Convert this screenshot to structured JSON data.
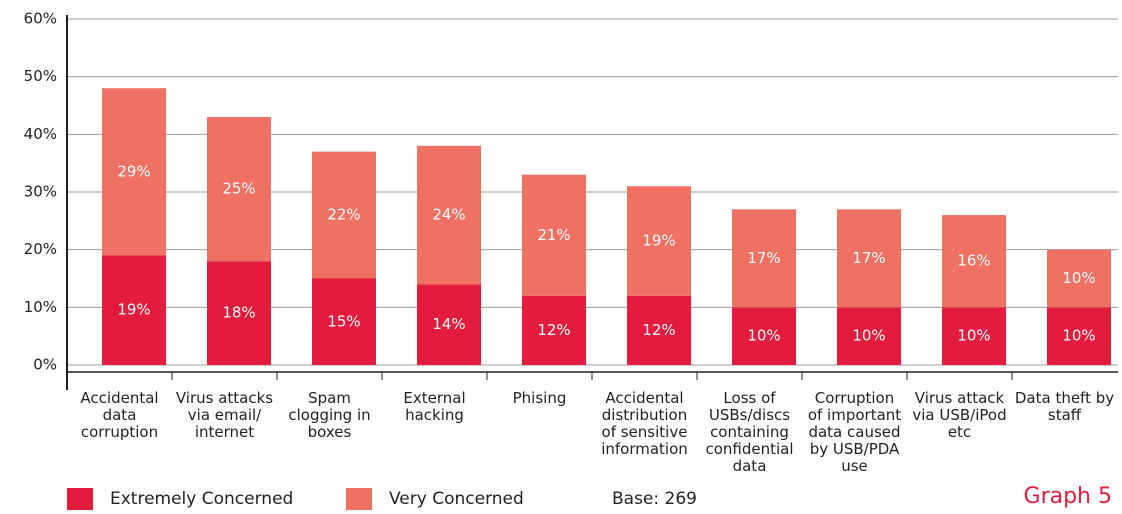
{
  "chart_data": {
    "type": "stacked_bar",
    "categories": [
      "Accidental\ndata\ncorruption",
      "Virus attacks\nvia email/\ninternet",
      "Spam\nclogging in\nboxes",
      "External\nhacking",
      "Phising",
      "Accidental\ndistribution\nof sensitive\ninformation",
      "Loss of\nUSBs/discs\ncontaining\nconfidential\ndata",
      "Corruption\nof important\ndata caused\nby USB/PDA\nuse",
      "Virus attack\nvia USB/iPod\netc",
      "Data theft by\nstaff"
    ],
    "series": [
      {
        "name": "Extremely Concerned",
        "color": "#e31b3c",
        "values": [
          19,
          18,
          15,
          14,
          12,
          12,
          10,
          10,
          10,
          10
        ]
      },
      {
        "name": "Very Concerned",
        "color": "#ee7164",
        "values": [
          29,
          25,
          22,
          24,
          21,
          19,
          17,
          17,
          16,
          10
        ]
      }
    ],
    "ylim": [
      0,
      60
    ],
    "yticks": [
      {
        "value": 0,
        "label": "0%"
      },
      {
        "value": 10,
        "label": "10%"
      },
      {
        "value": 20,
        "label": "20%"
      },
      {
        "value": 30,
        "label": "30%"
      },
      {
        "value": 40,
        "label": "40%"
      },
      {
        "value": 50,
        "label": "50%"
      },
      {
        "value": 60,
        "label": "60%"
      }
    ],
    "grid": true,
    "legend": "bottom",
    "note": "Base: 269",
    "caption": "Graph 5"
  }
}
